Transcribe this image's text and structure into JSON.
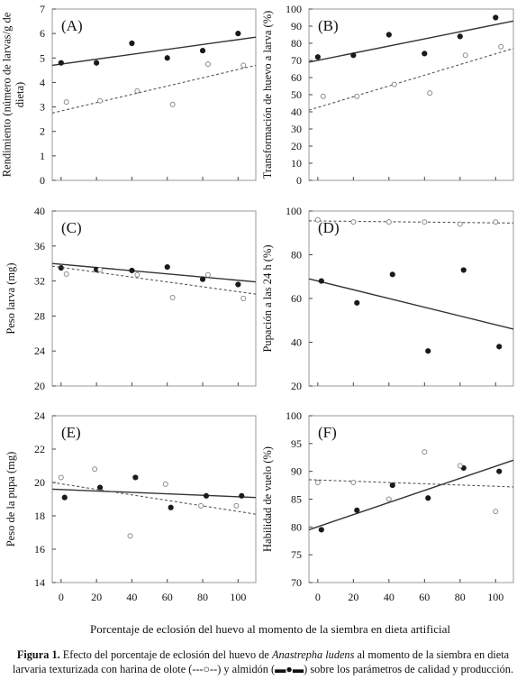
{
  "figure": {
    "xlabel": "Porcentaje de eclosión del huevo al momento de la siembra en dieta artificial",
    "x_ticks": [
      "0",
      "20",
      "40",
      "60",
      "80",
      "100"
    ]
  },
  "caption": {
    "label": "Figura 1.",
    "text_before": " Efecto del porcentaje de eclosión del huevo de ",
    "species": "Anastrepha ludens",
    "text_middle": " al momento de la siembra en dieta larvaria texturizada con harina de olote (",
    "olote_symbol": "---○--",
    "text_and": ") y almidón (",
    "almidon_symbol": "▬●▬",
    "text_after": ") sobre los parámetros de calidad y producción."
  },
  "chart_data": [
    {
      "type": "scatter",
      "panel": "(A)",
      "xlabel": "",
      "ylabel": "Rendimiento (número de larvas/g de dieta)",
      "xlim": [
        -5,
        110
      ],
      "ylim": [
        0,
        7
      ],
      "yticks": [
        0,
        1,
        2,
        3,
        4,
        5,
        6,
        7
      ],
      "series": [
        {
          "style": "filled",
          "x": [
            0,
            20,
            40,
            60,
            80,
            100
          ],
          "y": [
            4.8,
            4.8,
            5.6,
            5.0,
            5.3,
            6.0
          ],
          "trend": [
            [
              -5,
              4.7
            ],
            [
              110,
              5.85
            ]
          ]
        },
        {
          "style": "open",
          "x": [
            3,
            22,
            43,
            63,
            83,
            103
          ],
          "y": [
            3.2,
            3.25,
            3.65,
            3.1,
            4.75,
            4.7
          ],
          "trend": [
            [
              -5,
              2.75
            ],
            [
              110,
              4.7
            ]
          ]
        }
      ]
    },
    {
      "type": "scatter",
      "panel": "(B)",
      "xlabel": "",
      "ylabel": "Transformación de huevo a larva (%)",
      "xlim": [
        -5,
        110
      ],
      "ylim": [
        0,
        100
      ],
      "yticks": [
        0,
        10,
        20,
        30,
        40,
        50,
        60,
        70,
        80,
        90,
        100
      ],
      "series": [
        {
          "style": "filled",
          "x": [
            0,
            20,
            40,
            60,
            80,
            100
          ],
          "y": [
            72,
            73,
            85,
            74,
            84,
            95
          ],
          "trend": [
            [
              -5,
              69
            ],
            [
              110,
              93
            ]
          ]
        },
        {
          "style": "open",
          "x": [
            3,
            22,
            43,
            63,
            83,
            103
          ],
          "y": [
            49,
            49,
            56,
            51,
            73,
            78
          ],
          "trend": [
            [
              -5,
              41
            ],
            [
              110,
              77
            ]
          ]
        }
      ]
    },
    {
      "type": "scatter",
      "panel": "(C)",
      "xlabel": "",
      "ylabel": "Peso larva (mg)",
      "xlim": [
        -5,
        110
      ],
      "ylim": [
        20,
        40
      ],
      "yticks": [
        20,
        24,
        28,
        32,
        36,
        40
      ],
      "series": [
        {
          "style": "filled",
          "x": [
            0,
            20,
            40,
            60,
            80,
            100
          ],
          "y": [
            33.5,
            33.3,
            33.2,
            33.6,
            32.2,
            31.6
          ],
          "trend": [
            [
              -5,
              34.0
            ],
            [
              110,
              31.9
            ]
          ]
        },
        {
          "style": "open",
          "x": [
            3,
            22,
            43,
            63,
            83,
            103
          ],
          "y": [
            32.8,
            33.3,
            32.7,
            30.1,
            32.7,
            30.0
          ],
          "trend": [
            [
              -5,
              33.7
            ],
            [
              110,
              30.5
            ]
          ]
        }
      ]
    },
    {
      "type": "scatter",
      "panel": "(D)",
      "xlabel": "",
      "ylabel": "Pupación a las 24 h (%)",
      "xlim": [
        -5,
        110
      ],
      "ylim": [
        20,
        100
      ],
      "yticks": [
        20,
        40,
        60,
        80,
        100
      ],
      "series": [
        {
          "style": "filled",
          "x": [
            2,
            22,
            42,
            62,
            82,
            102
          ],
          "y": [
            68,
            58,
            71,
            36,
            73,
            38
          ],
          "trend": [
            [
              -5,
              69
            ],
            [
              110,
              46
            ]
          ]
        },
        {
          "style": "open",
          "x": [
            0,
            20,
            40,
            60,
            80,
            100
          ],
          "y": [
            96,
            95,
            95,
            95,
            94,
            95
          ],
          "trend": [
            [
              -5,
              95.5
            ],
            [
              110,
              94.5
            ]
          ]
        }
      ]
    },
    {
      "type": "scatter",
      "panel": "(E)",
      "xlabel": "",
      "ylabel": "Peso de la pupa (mg)",
      "xlim": [
        -5,
        110
      ],
      "ylim": [
        14,
        24
      ],
      "yticks": [
        14,
        16,
        18,
        20,
        22,
        24
      ],
      "series": [
        {
          "style": "filled",
          "x": [
            2,
            22,
            42,
            62,
            82,
            102
          ],
          "y": [
            19.1,
            19.7,
            20.3,
            18.5,
            19.2,
            19.2
          ],
          "trend": [
            [
              -5,
              19.6
            ],
            [
              110,
              19.1
            ]
          ]
        },
        {
          "style": "open",
          "x": [
            0,
            19,
            39,
            59,
            79,
            99
          ],
          "y": [
            20.3,
            20.8,
            16.8,
            19.9,
            18.6,
            18.6
          ],
          "trend": [
            [
              -5,
              20.0
            ],
            [
              110,
              18.1
            ]
          ]
        }
      ]
    },
    {
      "type": "scatter",
      "panel": "(F)",
      "xlabel": "",
      "ylabel": "Habilidad de vuelo (%)",
      "xlim": [
        -5,
        110
      ],
      "ylim": [
        70,
        100
      ],
      "yticks": [
        70,
        75,
        80,
        85,
        90,
        95,
        100
      ],
      "series": [
        {
          "style": "filled",
          "x": [
            2,
            22,
            42,
            62,
            82,
            102
          ],
          "y": [
            79.5,
            83,
            87.5,
            85.2,
            90.6,
            90
          ],
          "trend": [
            [
              -5,
              79.5
            ],
            [
              110,
              92
            ]
          ]
        },
        {
          "style": "open",
          "x": [
            0,
            20,
            40,
            60,
            80,
            100
          ],
          "y": [
            88,
            88,
            85,
            93.5,
            91,
            82.8
          ],
          "trend": [
            [
              -5,
              88.5
            ],
            [
              110,
              87.2
            ]
          ]
        }
      ]
    }
  ]
}
